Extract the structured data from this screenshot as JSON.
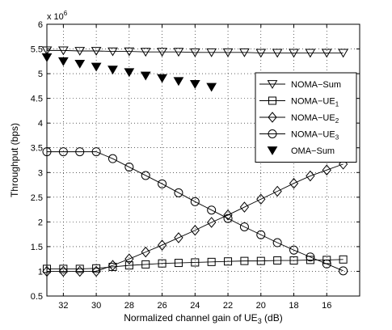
{
  "chart_data": {
    "type": "line",
    "xlabel_main": "Normalized channel gain of UE",
    "xlabel_sub": "3",
    "xlabel_unit": " (dB)",
    "ylabel": "Throughput (bps)",
    "y_multiplier_base": "x 10",
    "y_multiplier_exp": "6",
    "x_reversed": true,
    "xlim": [
      14,
      33
    ],
    "ylim": [
      0.5,
      6
    ],
    "y_scale": 1000000,
    "grid": true,
    "legend_position": "top-right",
    "x_ticks": [
      32,
      30,
      28,
      26,
      24,
      22,
      20,
      18,
      16
    ],
    "y_ticks": [
      0.5,
      1,
      1.5,
      2,
      2.5,
      3,
      3.5,
      4,
      4.5,
      5,
      5.5,
      6
    ],
    "y_tick_labels": [
      "0.5",
      "1",
      "1.5",
      "2",
      "2.5",
      "3",
      "3.5",
      "4",
      "4.5",
      "5",
      "5.5",
      "6"
    ],
    "series": [
      {
        "name": "NOMA−Sum",
        "marker": "triangle-down-open",
        "x": [
          33,
          32,
          31,
          30,
          29,
          28,
          27,
          26,
          25,
          24,
          23,
          22,
          21,
          20,
          19,
          18,
          17,
          16,
          15
        ],
        "values": [
          5.47,
          5.47,
          5.46,
          5.46,
          5.45,
          5.45,
          5.44,
          5.44,
          5.44,
          5.43,
          5.43,
          5.43,
          5.43,
          5.42,
          5.42,
          5.42,
          5.42,
          5.42,
          5.42
        ]
      },
      {
        "name": "NOMA−UE",
        "name_sub": "1",
        "marker": "square-open",
        "x": [
          33,
          32,
          31,
          30,
          29,
          28,
          27,
          26,
          25,
          24,
          23,
          22,
          21,
          20,
          19,
          18,
          17,
          16,
          15
        ],
        "values": [
          1.05,
          1.05,
          1.05,
          1.06,
          1.09,
          1.12,
          1.14,
          1.16,
          1.17,
          1.18,
          1.19,
          1.2,
          1.21,
          1.21,
          1.22,
          1.22,
          1.23,
          1.23,
          1.24
        ]
      },
      {
        "name": "NOMA−UE",
        "name_sub": "2",
        "marker": "diamond-open",
        "x": [
          33,
          32,
          31,
          30,
          29,
          28,
          27,
          26,
          25,
          24,
          23,
          22,
          21,
          20,
          19,
          18,
          17,
          16,
          15
        ],
        "values": [
          1.0,
          1.0,
          1.0,
          1.0,
          1.12,
          1.25,
          1.39,
          1.53,
          1.68,
          1.83,
          1.99,
          2.14,
          2.3,
          2.46,
          2.62,
          2.78,
          2.93,
          3.05,
          3.17
        ]
      },
      {
        "name": "NOMA−UE",
        "name_sub": "3",
        "marker": "circle-open",
        "x": [
          33,
          32,
          31,
          30,
          29,
          28,
          27,
          26,
          25,
          24,
          23,
          22,
          21,
          20,
          19,
          18,
          17,
          16,
          15
        ],
        "values": [
          3.42,
          3.42,
          3.42,
          3.42,
          3.28,
          3.11,
          2.94,
          2.77,
          2.59,
          2.41,
          2.24,
          2.07,
          1.9,
          1.74,
          1.58,
          1.43,
          1.29,
          1.15,
          1.01
        ]
      },
      {
        "name": "OMA−Sum",
        "marker": "triangle-down-filled",
        "line": false,
        "x": [
          33,
          32,
          31,
          30,
          29,
          28,
          27,
          26,
          25,
          24,
          23
        ],
        "values": [
          5.33,
          5.25,
          5.2,
          5.14,
          5.08,
          5.03,
          4.96,
          4.91,
          4.85,
          4.79,
          4.73
        ]
      }
    ]
  }
}
